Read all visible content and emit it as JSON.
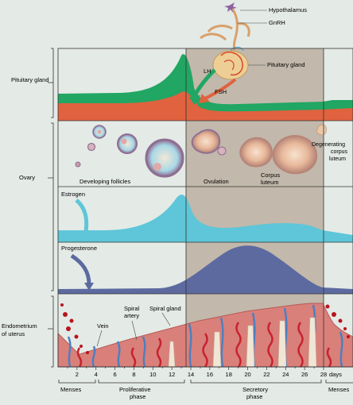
{
  "hypothalamus_panel": {
    "labels": {
      "hypothalamus": "Hypothalamus",
      "gnrh": "GnRH",
      "pituitary_gland": "Pituitary gland",
      "lh": "LH",
      "fsh": "FSH"
    }
  },
  "rows": {
    "pituitary": "Pituitary gland",
    "ovary": "Ovary",
    "endometrium_line1": "Endometrium",
    "endometrium_line2": "of uterus"
  },
  "ovary_panel": {
    "developing_follicles": "Developing follicles",
    "ovulation": "Ovulation",
    "corpus_luteum_line1": "Corpus",
    "corpus_luteum_line2": "luteum",
    "degenerating_line1": "Degenerating",
    "degenerating_line2": "corpus",
    "degenerating_line3": "luteum"
  },
  "hormone_panels": {
    "estrogen": "Estrogen",
    "progesterone": "Progesterone"
  },
  "uterus_panel": {
    "vein": "Vein",
    "spiral_artery_line1": "Spiral",
    "spiral_artery_line2": "artery",
    "spiral_gland": "Spiral gland"
  },
  "timeline": {
    "ticks": [
      2,
      4,
      6,
      8,
      10,
      12,
      14,
      16,
      18,
      20,
      22,
      24,
      26,
      28
    ],
    "unit": "days"
  },
  "phases": {
    "menses_start": "Menses",
    "proliferative_line1": "Proliferative",
    "proliferative_line2": "phase",
    "secretory_line1": "Secretory",
    "secretory_line2": "phase",
    "menses_end": "Menses"
  },
  "colors": {
    "lh": "#21a663",
    "fsh": "#e0623f",
    "estrogen": "#5ec6d8",
    "progesterone": "#5c6aa0",
    "endometrium": "#d9807a",
    "background": "#e4eae6",
    "luteal_shade": "#c2b8ab"
  }
}
